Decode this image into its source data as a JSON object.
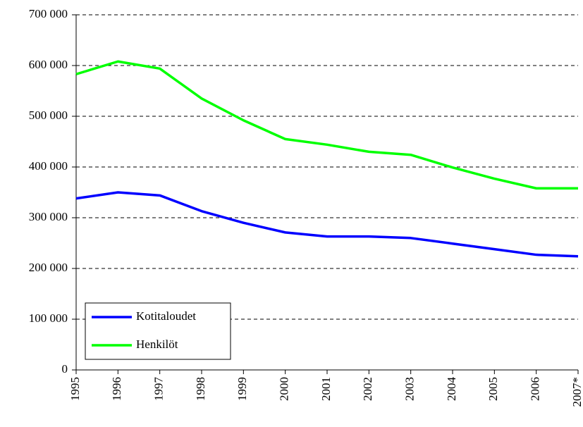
{
  "chart_data": {
    "type": "line",
    "categories": [
      "1995",
      "1996",
      "1997",
      "1998",
      "1999",
      "2000",
      "2001",
      "2002",
      "2003",
      "2004",
      "2005",
      "2006",
      "2007*"
    ],
    "series": [
      {
        "name": "Kotitaloudet",
        "color": "#0000ff",
        "values": [
          338000,
          350000,
          344000,
          313000,
          290000,
          271000,
          263000,
          263000,
          260000,
          249000,
          238000,
          227000,
          224000
        ]
      },
      {
        "name": "Henkilöt",
        "color": "#00ff00",
        "values": [
          583000,
          608000,
          594000,
          535000,
          492000,
          455000,
          444000,
          430000,
          424000,
          399000,
          377000,
          358000,
          358000
        ]
      }
    ],
    "ylim": [
      0,
      700000
    ],
    "yticks": [
      0,
      {
        "value": 100000,
        "label": "100 000"
      },
      {
        "value": 200000,
        "label": "200 000"
      },
      {
        "value": 300000,
        "label": "300 000"
      },
      {
        "value": 400000,
        "label": "400 000"
      },
      {
        "value": 500000,
        "label": "500 000"
      },
      {
        "value": 600000,
        "label": "600 000"
      },
      {
        "value": 700000,
        "label": "700 000"
      }
    ],
    "grid": true,
    "legend": "lower left"
  }
}
